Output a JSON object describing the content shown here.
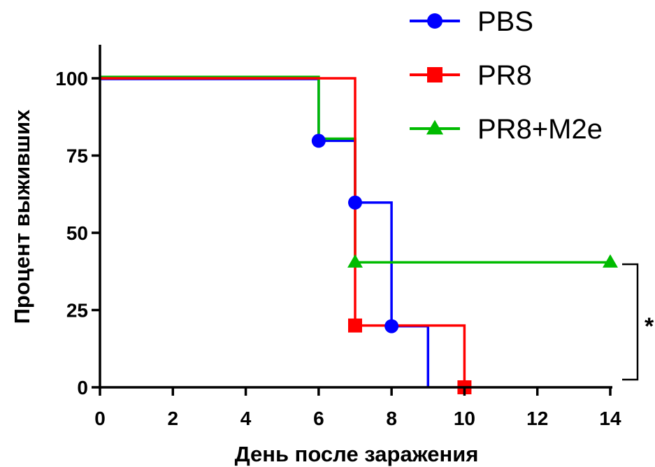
{
  "chart_data": {
    "type": "line",
    "subtype": "kaplan-meier-survival",
    "title": "",
    "xlabel": "День после заражения",
    "ylabel": "Процент выживших",
    "xlim": [
      0,
      14
    ],
    "ylim": [
      0,
      100
    ],
    "xticks": [
      0,
      2,
      4,
      6,
      8,
      10,
      12,
      14
    ],
    "yticks": [
      0,
      25,
      50,
      75,
      100
    ],
    "grid": false,
    "legend_position": "top-right",
    "series": [
      {
        "name": "PBS",
        "color": "#0000ff",
        "marker": "circle",
        "steps": [
          [
            0,
            100
          ],
          [
            6,
            100
          ],
          [
            6,
            80
          ],
          [
            7,
            80
          ],
          [
            7,
            60
          ],
          [
            8,
            60
          ],
          [
            8,
            20
          ],
          [
            9,
            20
          ],
          [
            9,
            0
          ]
        ],
        "markers": [
          [
            6,
            80
          ],
          [
            7,
            60
          ],
          [
            8,
            20
          ]
        ]
      },
      {
        "name": "PR8",
        "color": "#ff0000",
        "marker": "square",
        "steps": [
          [
            0,
            100
          ],
          [
            7,
            100
          ],
          [
            7,
            20
          ],
          [
            10,
            20
          ],
          [
            10,
            0
          ]
        ],
        "markers": [
          [
            7,
            20
          ],
          [
            10,
            0
          ]
        ]
      },
      {
        "name": "PR8+M2e",
        "color": "#00bb00",
        "marker": "triangle",
        "steps": [
          [
            0,
            100
          ],
          [
            6,
            100
          ],
          [
            6,
            80
          ],
          [
            7,
            80
          ],
          [
            7,
            40
          ],
          [
            14,
            40
          ]
        ],
        "markers": [
          [
            7,
            40
          ],
          [
            14,
            40
          ]
        ]
      }
    ],
    "annotations": [
      {
        "text": "*",
        "type": "significance-bracket",
        "y_range": [
          0,
          40
        ],
        "x": 14
      }
    ]
  }
}
